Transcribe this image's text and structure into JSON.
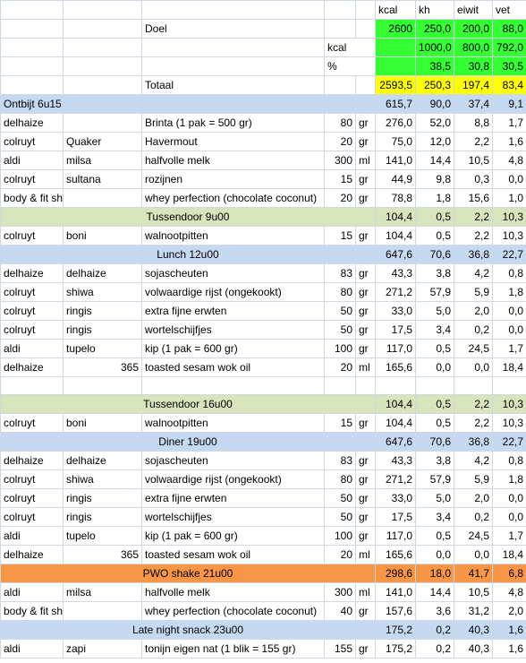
{
  "columns": [
    "kcal",
    "kh",
    "eiwit",
    "vet"
  ],
  "summary": {
    "doel": {
      "label": "Doel",
      "values": [
        "2600",
        "250,0",
        "200,0",
        "88,0"
      ]
    },
    "kcal_row": {
      "label": "kcal",
      "values": [
        "",
        "1000,0",
        "800,0",
        "792,0"
      ]
    },
    "pct_row": {
      "label": "%",
      "values": [
        "",
        "38,5",
        "30,8",
        "30,5"
      ]
    },
    "totaal": {
      "label": "Totaal",
      "values": [
        "2593,5",
        "250,3",
        "197,4",
        "83,4"
      ]
    }
  },
  "rows": [
    {
      "type": "section",
      "color": "blue",
      "align": "left",
      "title": "Ontbijt 6u15",
      "v": [
        "615,7",
        "90,0",
        "37,4",
        "9,1"
      ]
    },
    {
      "type": "item",
      "store": "delhaize",
      "brand": "",
      "product": "Brinta (1 pak = 500 gr)",
      "qty": "80",
      "unit": "gr",
      "v": [
        "276,0",
        "52,0",
        "8,8",
        "1,7"
      ]
    },
    {
      "type": "item",
      "store": "colruyt",
      "brand": "Quaker",
      "product": "Havermout",
      "qty": "20",
      "unit": "gr",
      "v": [
        "75,0",
        "12,0",
        "2,2",
        "1,6"
      ]
    },
    {
      "type": "item",
      "store": "aldi",
      "brand": "milsa",
      "product": "halfvolle melk",
      "qty": "300",
      "unit": "ml",
      "v": [
        "141,0",
        "14,4",
        "10,5",
        "4,8"
      ]
    },
    {
      "type": "item",
      "store": "colruyt",
      "brand": "sultana",
      "product": "rozijnen",
      "qty": "15",
      "unit": "gr",
      "v": [
        "44,9",
        "9,8",
        "0,3",
        "0,0"
      ]
    },
    {
      "type": "item",
      "store": "body & fit shop",
      "brand": "",
      "product": "whey perfection (chocolate coconut)",
      "qty": "20",
      "unit": "gr",
      "v": [
        "78,8",
        "1,8",
        "15,6",
        "1,0"
      ]
    },
    {
      "type": "section",
      "color": "green",
      "align": "center",
      "title": "Tussendoor 9u00",
      "v": [
        "104,4",
        "0,5",
        "2,2",
        "10,3"
      ]
    },
    {
      "type": "item",
      "store": "colruyt",
      "brand": "boni",
      "product": "walnootpitten",
      "qty": "15",
      "unit": "gr",
      "v": [
        "104,4",
        "0,5",
        "2,2",
        "10,3"
      ]
    },
    {
      "type": "section",
      "color": "blue",
      "align": "center",
      "title": "Lunch 12u00",
      "v": [
        "647,6",
        "70,6",
        "36,8",
        "22,7"
      ]
    },
    {
      "type": "item",
      "store": "delhaize",
      "brand": "delhaize",
      "product": "sojascheuten",
      "qty": "83",
      "unit": "gr",
      "v": [
        "43,3",
        "3,8",
        "4,2",
        "0,8"
      ]
    },
    {
      "type": "item",
      "store": "colruyt",
      "brand": "shiwa",
      "product": "volwaardige rijst (ongekookt)",
      "qty": "80",
      "unit": "gr",
      "v": [
        "271,2",
        "57,9",
        "5,9",
        "1,8"
      ]
    },
    {
      "type": "item",
      "store": "colruyt",
      "brand": "ringis",
      "product": "extra fijne erwten",
      "qty": "50",
      "unit": "gr",
      "v": [
        "33,0",
        "5,0",
        "2,0",
        "0,0"
      ]
    },
    {
      "type": "item",
      "store": "colruyt",
      "brand": "ringis",
      "product": "wortelschijfjes",
      "qty": "50",
      "unit": "gr",
      "v": [
        "17,5",
        "3,4",
        "0,2",
        "0,0"
      ]
    },
    {
      "type": "item",
      "store": "aldi",
      "brand": "tupelo",
      "product": "kip (1 pak = 600 gr)",
      "qty": "100",
      "unit": "gr",
      "v": [
        "117,0",
        "0,5",
        "24,5",
        "1,7"
      ]
    },
    {
      "type": "item",
      "store": "delhaize",
      "brand": "365",
      "brandRight": true,
      "product": "toasted sesam wok oil",
      "qty": "20",
      "unit": "ml",
      "v": [
        "165,6",
        "0,0",
        "0,0",
        "18,4"
      ]
    },
    {
      "type": "blank"
    },
    {
      "type": "section",
      "color": "green",
      "align": "center",
      "title": "Tussendoor 16u00",
      "v": [
        "104,4",
        "0,5",
        "2,2",
        "10,3"
      ]
    },
    {
      "type": "item",
      "store": "colruyt",
      "brand": "boni",
      "product": "walnootpitten",
      "qty": "15",
      "unit": "gr",
      "v": [
        "104,4",
        "0,5",
        "2,2",
        "10,3"
      ]
    },
    {
      "type": "section",
      "color": "blue",
      "align": "center",
      "title": "Diner 19u00",
      "v": [
        "647,6",
        "70,6",
        "36,8",
        "22,7"
      ]
    },
    {
      "type": "item",
      "store": "delhaize",
      "brand": "delhaize",
      "product": "sojascheuten",
      "qty": "83",
      "unit": "gr",
      "v": [
        "43,3",
        "3,8",
        "4,2",
        "0,8"
      ]
    },
    {
      "type": "item",
      "store": "colruyt",
      "brand": "shiwa",
      "product": "volwaardige rijst (ongekookt)",
      "qty": "80",
      "unit": "gr",
      "v": [
        "271,2",
        "57,9",
        "5,9",
        "1,8"
      ]
    },
    {
      "type": "item",
      "store": "colruyt",
      "brand": "ringis",
      "product": "extra fijne erwten",
      "qty": "50",
      "unit": "gr",
      "v": [
        "33,0",
        "5,0",
        "2,0",
        "0,0"
      ]
    },
    {
      "type": "item",
      "store": "colruyt",
      "brand": "ringis",
      "product": "wortelschijfjes",
      "qty": "50",
      "unit": "gr",
      "v": [
        "17,5",
        "3,4",
        "0,2",
        "0,0"
      ]
    },
    {
      "type": "item",
      "store": "aldi",
      "brand": "tupelo",
      "product": "kip (1 pak = 600 gr)",
      "qty": "100",
      "unit": "gr",
      "v": [
        "117,0",
        "0,5",
        "24,5",
        "1,7"
      ]
    },
    {
      "type": "item",
      "store": "delhaize",
      "brand": "365",
      "brandRight": true,
      "product": "toasted sesam wok oil",
      "qty": "20",
      "unit": "ml",
      "v": [
        "165,6",
        "0,0",
        "0,0",
        "18,4"
      ]
    },
    {
      "type": "section",
      "color": "orange",
      "align": "center",
      "title": "PWO shake 21u00",
      "v": [
        "298,6",
        "18,0",
        "41,7",
        "6,8"
      ]
    },
    {
      "type": "item",
      "store": "aldi",
      "brand": "milsa",
      "product": "halfvolle melk",
      "qty": "300",
      "unit": "ml",
      "v": [
        "141,0",
        "14,4",
        "10,5",
        "4,8"
      ]
    },
    {
      "type": "item",
      "store": "body & fit shop",
      "brand": "",
      "product": "whey perfection (chocolate coconut)",
      "qty": "40",
      "unit": "gr",
      "v": [
        "157,6",
        "3,6",
        "31,2",
        "2,0"
      ]
    },
    {
      "type": "section",
      "color": "blue",
      "align": "center",
      "title": "Late night snack 23u00",
      "v": [
        "175,2",
        "0,2",
        "40,3",
        "1,6"
      ]
    },
    {
      "type": "item",
      "store": "aldi",
      "brand": "zapi",
      "product": "tonijn eigen nat (1 blik = 155 gr)",
      "qty": "155",
      "unit": "gr",
      "v": [
        "175,2",
        "0,2",
        "40,3",
        "1,6"
      ]
    }
  ]
}
